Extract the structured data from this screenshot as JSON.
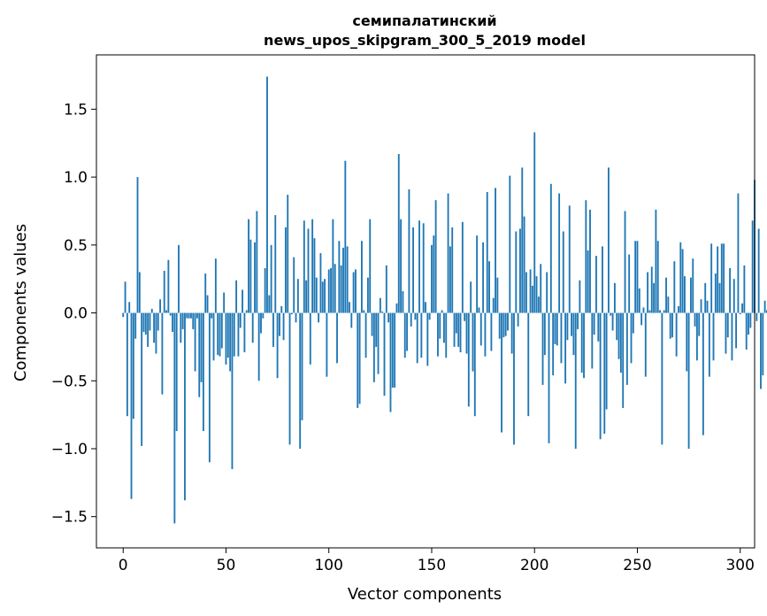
{
  "chart_data": {
    "type": "bar",
    "title": "семипалатинский",
    "subtitle": "news_upos_skipgram_300_5_2019 model",
    "xlabel": "Vector components",
    "ylabel": "Components values",
    "xlim": [
      -13,
      307
    ],
    "ylim": [
      -1.73,
      1.9
    ],
    "xticks": [
      0,
      50,
      100,
      150,
      200,
      250,
      300
    ],
    "xtick_labels": [
      "0",
      "50",
      "100",
      "150",
      "200",
      "250",
      "300"
    ],
    "yticks": [
      -1.5,
      -1.0,
      -0.5,
      0.0,
      0.5,
      1.0,
      1.5
    ],
    "ytick_labels": [
      "−1.5",
      "−1.0",
      "−0.5",
      "0.0",
      "0.5",
      "1.0",
      "1.5"
    ],
    "grid": false,
    "bar_color": "#1f77b4",
    "values": [
      -0.03,
      0.23,
      -0.76,
      0.08,
      -1.37,
      -0.78,
      -0.19,
      1.0,
      0.3,
      -0.98,
      -0.14,
      -0.16,
      -0.25,
      -0.13,
      0.03,
      -0.22,
      -0.3,
      -0.13,
      0.1,
      -0.6,
      0.31,
      0.02,
      0.39,
      -0.02,
      -0.14,
      -1.55,
      -0.87,
      0.5,
      -0.22,
      -0.12,
      -1.38,
      -0.04,
      -0.04,
      -0.04,
      -0.12,
      -0.43,
      -0.04,
      -0.62,
      -0.51,
      -0.87,
      0.29,
      0.13,
      -1.1,
      -0.04,
      -0.35,
      0.4,
      -0.31,
      -0.32,
      -0.26,
      0.15,
      -0.38,
      -0.33,
      -0.43,
      -1.15,
      -0.32,
      0.24,
      -0.32,
      -0.11,
      0.17,
      -0.29,
      0.02,
      0.69,
      0.54,
      -0.22,
      0.52,
      0.75,
      -0.5,
      -0.15,
      -0.04,
      0.33,
      1.74,
      0.13,
      0.5,
      -0.25,
      0.72,
      -0.48,
      -0.17,
      0.05,
      -0.2,
      0.63,
      0.87,
      -0.97,
      -0.01,
      0.41,
      -0.07,
      0.25,
      -1.0,
      -0.79,
      0.68,
      0.24,
      0.62,
      -0.38,
      0.69,
      0.55,
      0.26,
      -0.07,
      0.44,
      0.23,
      0.25,
      -0.47,
      0.32,
      0.33,
      0.69,
      0.36,
      -0.37,
      0.53,
      0.35,
      0.48,
      1.12,
      0.49,
      0.08,
      -0.11,
      0.3,
      0.32,
      -0.7,
      -0.67,
      0.53,
      0.02,
      -0.33,
      0.26,
      0.69,
      -0.17,
      -0.51,
      -0.25,
      -0.45,
      0.11,
      0.01,
      -0.61,
      0.35,
      -0.07,
      -0.73,
      -0.55,
      -0.55,
      0.07,
      1.17,
      0.69,
      0.16,
      -0.33,
      -0.28,
      0.91,
      -0.1,
      0.63,
      -0.05,
      -0.37,
      0.68,
      -0.33,
      0.66,
      0.08,
      -0.39,
      -0.05,
      0.5,
      0.57,
      0.83,
      -0.32,
      -0.19,
      0.02,
      -0.22,
      -0.33,
      0.88,
      0.49,
      0.63,
      -0.25,
      -0.15,
      -0.25,
      -0.29,
      0.67,
      -0.06,
      -0.3,
      -0.69,
      0.23,
      -0.43,
      -0.76,
      0.57,
      0.04,
      -0.24,
      0.52,
      -0.32,
      0.89,
      0.38,
      -0.28,
      0.11,
      0.92,
      0.26,
      -0.19,
      -0.88,
      -0.18,
      -0.17,
      -0.13,
      1.01,
      -0.3,
      -0.97,
      0.6,
      -0.1,
      0.62,
      1.07,
      0.71,
      0.3,
      -0.76,
      0.32,
      0.2,
      1.33,
      0.27,
      0.12,
      0.36,
      -0.53,
      -0.31,
      0.3,
      -0.96,
      0.95,
      -0.46,
      -0.23,
      -0.24,
      0.88,
      -0.37,
      0.6,
      -0.52,
      -0.2,
      0.79,
      -0.17,
      -0.31,
      -1.0,
      -0.12,
      0.24,
      -0.44,
      -0.48,
      0.83,
      0.46,
      0.76,
      -0.41,
      -0.16,
      0.42,
      -0.21,
      -0.93,
      0.49,
      -0.89,
      -0.71,
      1.07,
      -0.02,
      -0.13,
      0.22,
      -0.2,
      -0.34,
      -0.44,
      -0.7,
      0.75,
      -0.53,
      0.43,
      -0.37,
      -0.15,
      0.53,
      0.53,
      0.18,
      -0.09,
      0.04,
      -0.47,
      0.3,
      0.02,
      0.34,
      0.22,
      0.76,
      0.53,
      0.02,
      -0.97,
      0.02,
      0.26,
      0.12,
      -0.19,
      -0.18,
      0.38,
      -0.32,
      0.05,
      0.52,
      0.47,
      0.27,
      -0.43,
      -1.0,
      0.26,
      0.4,
      -0.1,
      -0.35,
      -0.17,
      0.1,
      -0.9,
      0.22,
      0.09,
      -0.47,
      0.51,
      -0.35,
      0.29,
      0.49,
      0.22,
      0.51,
      0.51,
      -0.3,
      -0.18,
      0.33,
      -0.35,
      0.25,
      -0.26,
      0.88,
      -0.01,
      0.07,
      0.35,
      -0.27,
      -0.16,
      -0.11,
      0.68,
      0.98,
      -0.06,
      0.62,
      -0.56,
      -0.46,
      0.09,
      0.02,
      -0.06,
      0.21,
      -0.01,
      0.12
    ]
  }
}
